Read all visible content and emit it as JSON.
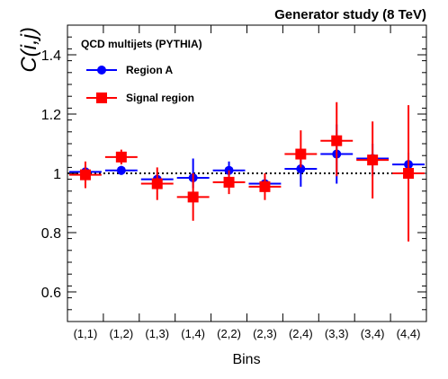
{
  "chart_data": {
    "type": "scatter",
    "title": "Generator study (8 TeV)",
    "annotation": "QCD multijets (PYTHIA)",
    "xlabel": "Bins",
    "ylabel": "C(i,j)",
    "categories": [
      "(1,1)",
      "(1,2)",
      "(1,3)",
      "(1,4)",
      "(2,2)",
      "(2,3)",
      "(2,4)",
      "(3,3)",
      "(3,4)",
      "(4,4)"
    ],
    "ylim": [
      0.5,
      1.5
    ],
    "yticks": [
      0.6,
      0.8,
      1,
      1.2,
      1.4
    ],
    "ytick_labels": [
      "0.6",
      "0.8",
      "1",
      "1.2",
      "1.4"
    ],
    "reference_line": 1.0,
    "legend_position": "top-left",
    "series": [
      {
        "name": "Region A",
        "color": "#0000ff",
        "marker": "circle",
        "values": [
          1.005,
          1.01,
          0.98,
          0.985,
          1.01,
          0.965,
          1.015,
          1.065,
          1.05,
          1.03
        ],
        "err_low": [
          0.02,
          0.015,
          0.02,
          0.035,
          0.03,
          0.025,
          0.06,
          0.1,
          0.06,
          0.05
        ],
        "err_high": [
          0.02,
          0.015,
          0.02,
          0.065,
          0.03,
          0.025,
          0.06,
          0.1,
          0.05,
          0.04
        ]
      },
      {
        "name": "Signal region",
        "color": "#ff0000",
        "marker": "square",
        "values": [
          0.995,
          1.055,
          0.965,
          0.92,
          0.97,
          0.955,
          1.065,
          1.11,
          1.045,
          1.0
        ],
        "err_low": [
          0.045,
          0.025,
          0.055,
          0.08,
          0.04,
          0.045,
          0.045,
          0.12,
          0.13,
          0.23
        ],
        "err_high": [
          0.045,
          0.025,
          0.055,
          0.08,
          0.04,
          0.045,
          0.08,
          0.13,
          0.13,
          0.23
        ]
      }
    ]
  }
}
